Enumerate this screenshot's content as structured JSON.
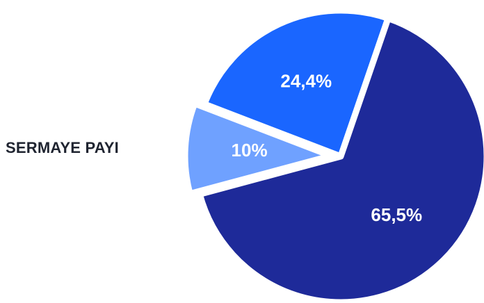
{
  "chart_data": {
    "type": "pie",
    "title": "SERMAYE PAYI",
    "slices": [
      {
        "label": "",
        "value_label": "24,4%",
        "value": 24.4,
        "color": "#1a66ff"
      },
      {
        "label": "",
        "value_label": "65,5%",
        "value": 65.5,
        "color": "#1e2a99"
      },
      {
        "label": "",
        "value_label": "10%",
        "value": 10.0,
        "color": "#6fa1ff"
      }
    ]
  }
}
